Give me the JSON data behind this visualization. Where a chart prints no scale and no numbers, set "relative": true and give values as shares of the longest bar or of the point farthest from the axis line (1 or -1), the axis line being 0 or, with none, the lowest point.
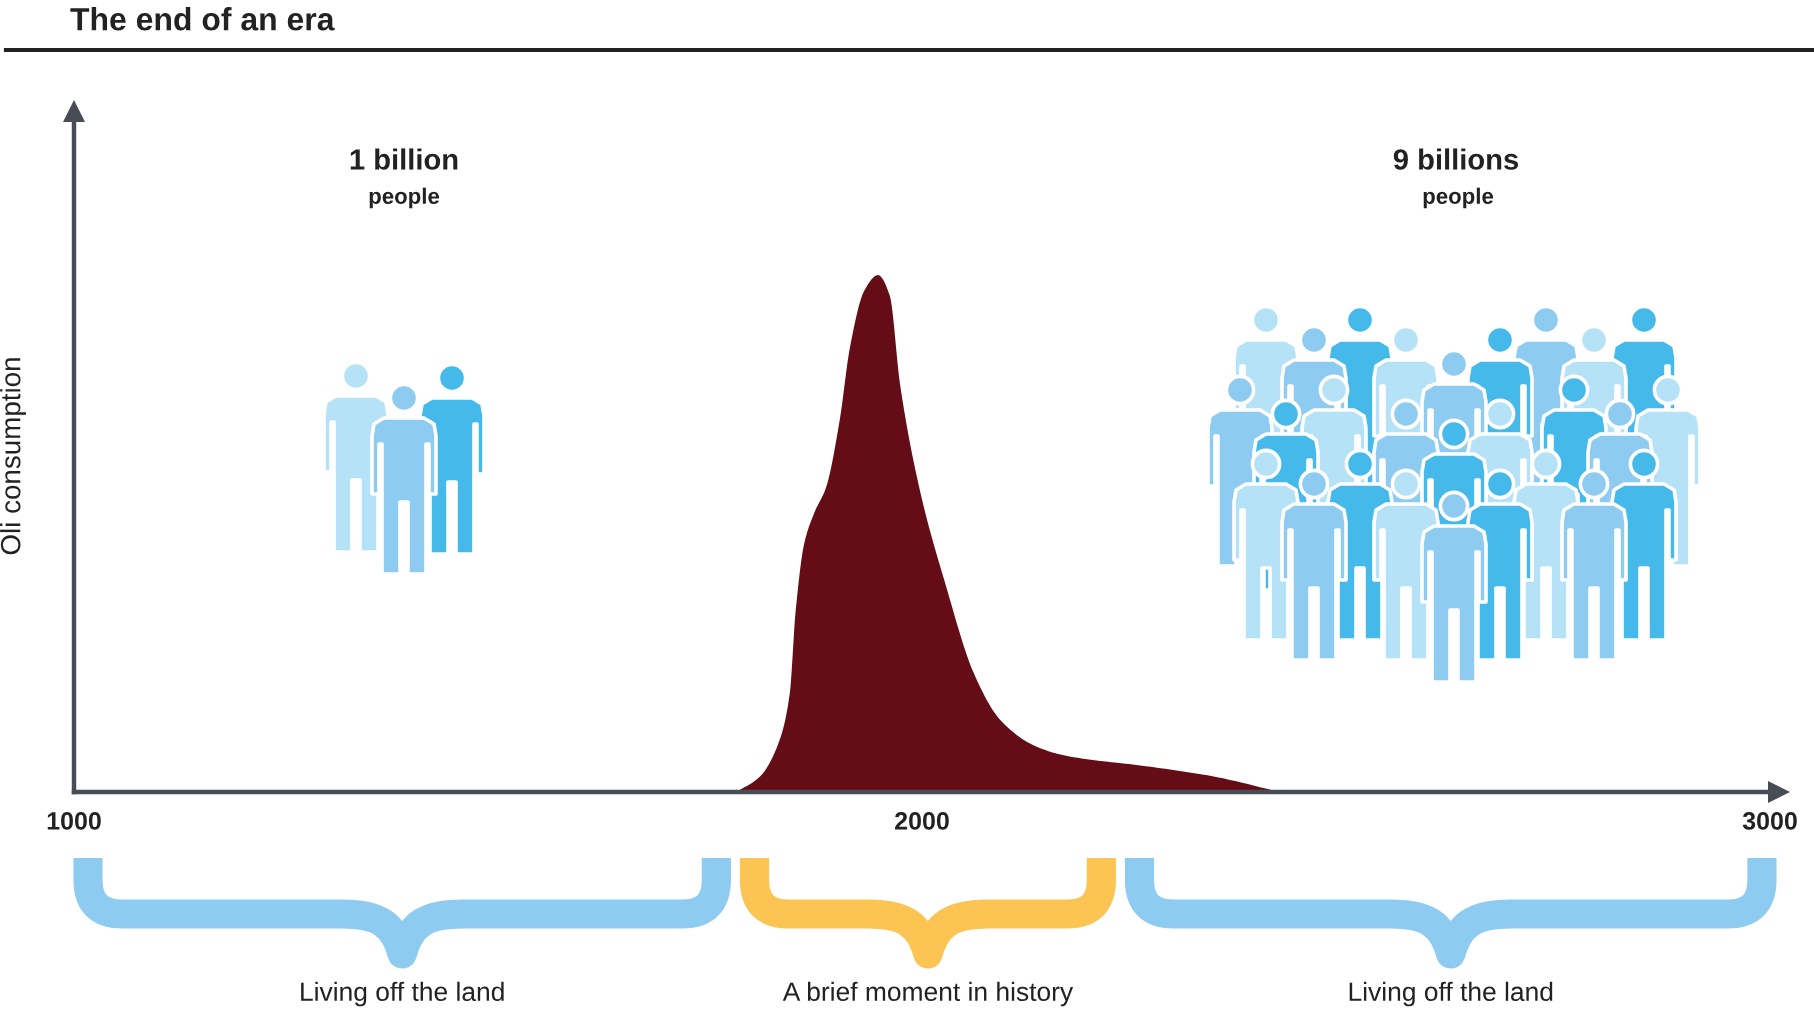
{
  "chart_data": {
    "type": "area",
    "title": "The end of an era",
    "ylabel": "Oli consumption",
    "relative": true,
    "x": [
      1781,
      1809,
      1832,
      1844,
      1851,
      1861,
      1873,
      1887,
      1903,
      1915,
      1932,
      1948,
      1962,
      1974,
      1998,
      2028,
      2061,
      2092,
      2132,
      2170,
      2264,
      2344,
      2422
    ],
    "series": [
      {
        "color": "#640d17",
        "values": [
          0,
          0.03,
          0.1,
          0.19,
          0.35,
          0.48,
          0.54,
          0.59,
          0.72,
          0.86,
          0.97,
          1,
          0.96,
          0.79,
          0.58,
          0.4,
          0.23,
          0.14,
          0.09,
          0.07,
          0.05,
          0.03,
          0
        ]
      }
    ],
    "xlim": [
      1000,
      3000
    ],
    "xticks": [
      1000,
      2000,
      3000
    ],
    "annotations": [
      "1 billion",
      "people",
      "9 billions",
      "people",
      "Living off the land",
      "A brief moment in history",
      "Living off the land"
    ]
  }
}
